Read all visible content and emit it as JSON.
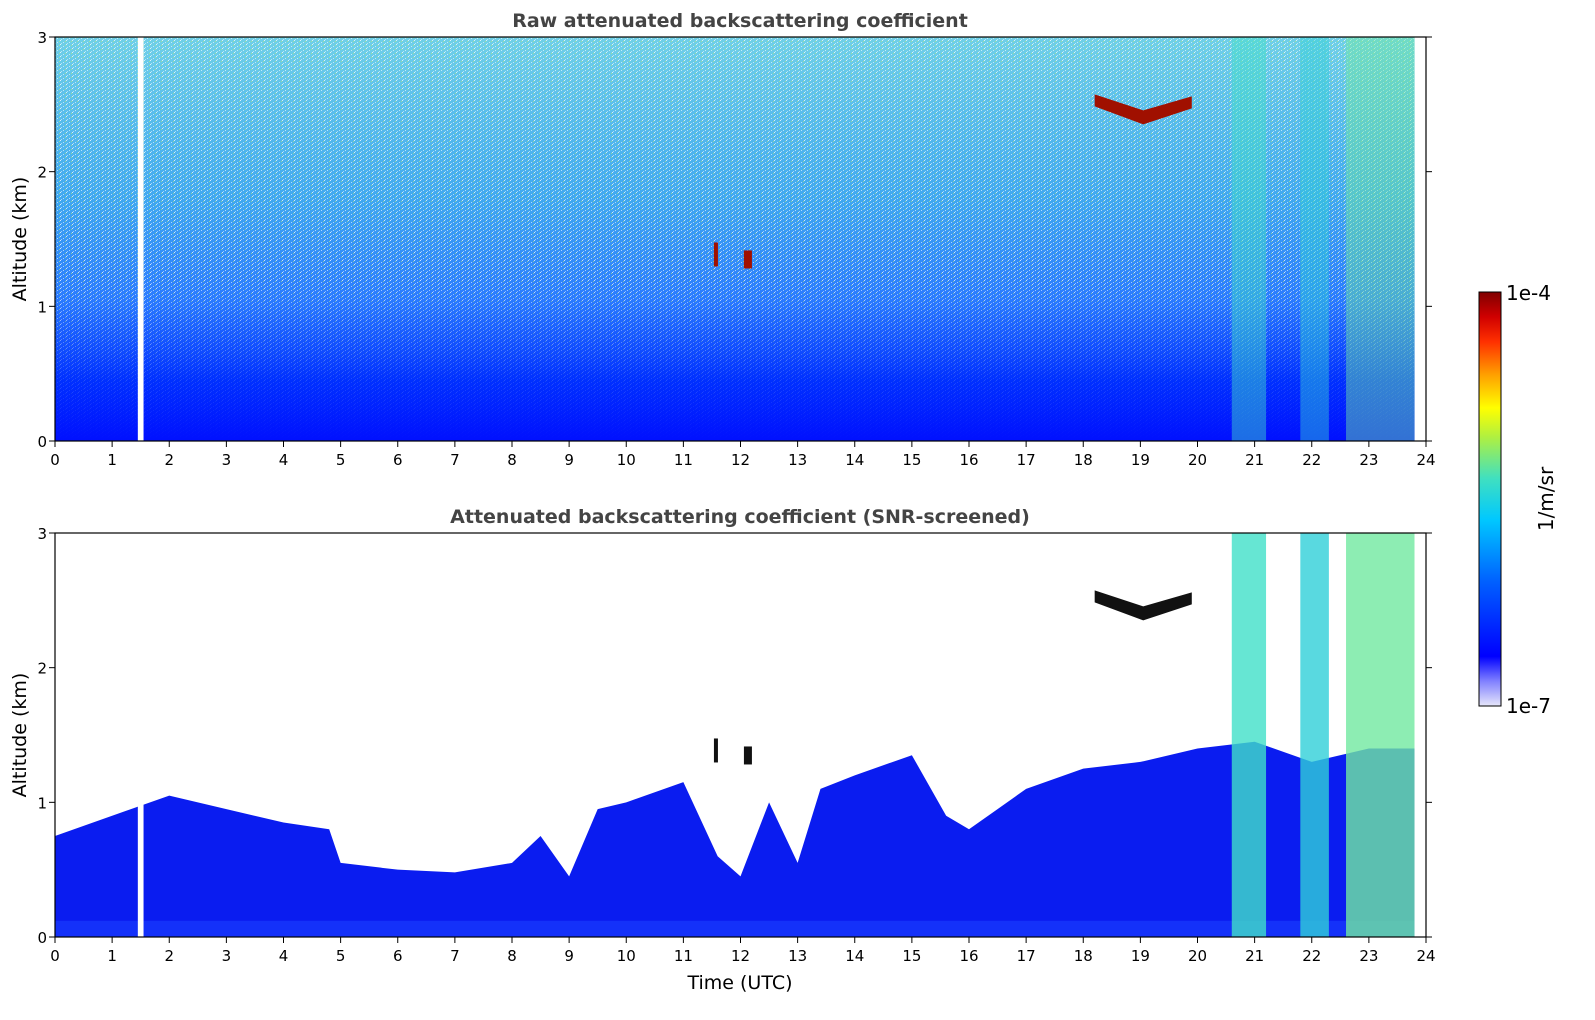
{
  "chart_data": [
    {
      "type": "heatmap",
      "title": "Raw attenuated backscattering coefficient",
      "xlabel": "",
      "ylabel": "Altitude (km)",
      "xlim": [
        0,
        24
      ],
      "ylim": [
        0,
        3
      ],
      "x_ticks": [
        "0",
        "1",
        "2",
        "3",
        "4",
        "5",
        "6",
        "7",
        "8",
        "9",
        "10",
        "11",
        "12",
        "13",
        "14",
        "15",
        "16",
        "17",
        "18",
        "19",
        "20",
        "21",
        "22",
        "23",
        "24"
      ],
      "y_ticks": [
        "0",
        "1",
        "2",
        "3"
      ],
      "missing_data_gaps": [
        {
          "x_start": 1.45,
          "x_end": 1.55
        }
      ],
      "features": [
        {
          "kind": "cloud",
          "x_start": 18.2,
          "x_end": 19.9,
          "altitude_km": 2.5,
          "level": "high"
        },
        {
          "kind": "cloud",
          "x_start": 11.5,
          "x_end": 12.2,
          "altitude_km": 1.4,
          "level": "high"
        },
        {
          "kind": "enhanced_signal",
          "x_start": 20.6,
          "x_end": 23.8,
          "level": "medium"
        }
      ]
    },
    {
      "type": "heatmap",
      "title": "Attenuated backscattering coefficient (SNR-screened)",
      "xlabel": "Time (UTC)",
      "ylabel": "Altitude (km)",
      "xlim": [
        0,
        24
      ],
      "ylim": [
        0,
        3
      ],
      "x_ticks": [
        "0",
        "1",
        "2",
        "3",
        "4",
        "5",
        "6",
        "7",
        "8",
        "9",
        "10",
        "11",
        "12",
        "13",
        "14",
        "15",
        "16",
        "17",
        "18",
        "19",
        "20",
        "21",
        "22",
        "23",
        "24"
      ],
      "y_ticks": [
        "0",
        "1",
        "2",
        "3"
      ],
      "missing_data_gaps": [
        {
          "x_start": 1.45,
          "x_end": 1.55
        }
      ],
      "signal_top_km": [
        [
          0,
          0.75
        ],
        [
          1.0,
          0.9
        ],
        [
          2.0,
          1.05
        ],
        [
          3.0,
          0.95
        ],
        [
          4.0,
          0.85
        ],
        [
          4.8,
          0.8
        ],
        [
          5.0,
          0.55
        ],
        [
          6.0,
          0.5
        ],
        [
          7.0,
          0.48
        ],
        [
          8.0,
          0.55
        ],
        [
          8.5,
          0.75
        ],
        [
          9.0,
          0.45
        ],
        [
          9.5,
          0.95
        ],
        [
          10.0,
          1.0
        ],
        [
          11.0,
          1.15
        ],
        [
          11.6,
          0.6
        ],
        [
          12.0,
          0.45
        ],
        [
          12.5,
          1.0
        ],
        [
          13.0,
          0.55
        ],
        [
          13.4,
          1.1
        ],
        [
          14.0,
          1.2
        ],
        [
          15.0,
          1.35
        ],
        [
          15.6,
          0.9
        ],
        [
          16.0,
          0.8
        ],
        [
          16.5,
          0.95
        ],
        [
          17.0,
          1.1
        ],
        [
          18.0,
          1.25
        ],
        [
          19.0,
          1.3
        ],
        [
          20.0,
          1.4
        ],
        [
          21.0,
          1.45
        ],
        [
          22.0,
          1.3
        ],
        [
          23.0,
          1.4
        ],
        [
          23.8,
          1.4
        ]
      ],
      "features": [
        {
          "kind": "cloud",
          "x_start": 18.2,
          "x_end": 19.9,
          "altitude_km": 2.5,
          "level": "saturated"
        },
        {
          "kind": "cloud",
          "x_start": 11.5,
          "x_end": 12.2,
          "altitude_km": 1.4,
          "level": "saturated"
        },
        {
          "kind": "enhanced_signal",
          "x_start": 20.6,
          "x_end": 23.8,
          "level": "medium"
        }
      ]
    }
  ],
  "colorbar": {
    "max_label": "1e-4",
    "min_label": "1e-7",
    "units_label": "1/m/sr",
    "stops": [
      "#e6e6fa",
      "#8080ff",
      "#0000ff",
      "#0060ff",
      "#00c8ff",
      "#40e0c0",
      "#b0f040",
      "#ffff00",
      "#ffa000",
      "#ff3000",
      "#d00000",
      "#800000"
    ]
  }
}
